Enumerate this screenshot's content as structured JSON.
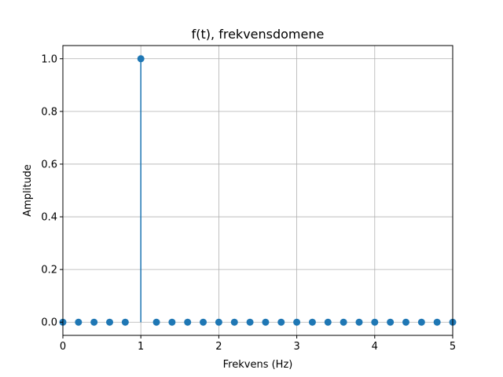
{
  "chart_data": {
    "type": "scatter",
    "title": "f(t), frekvensdomene",
    "xlabel": "Frekvens (Hz)",
    "ylabel": "Amplitude",
    "xlim": [
      0,
      5
    ],
    "ylim": [
      -0.05,
      1.05
    ],
    "grid": true,
    "x_ticks": [
      0,
      1,
      2,
      3,
      4,
      5
    ],
    "x_tick_labels": [
      "0",
      "1",
      "2",
      "3",
      "4",
      "5"
    ],
    "y_ticks": [
      0.0,
      0.2,
      0.4,
      0.6,
      0.8,
      1.0
    ],
    "y_tick_labels": [
      "0.0",
      "0.2",
      "0.4",
      "0.6",
      "0.8",
      "1.0"
    ],
    "marker_color": "#1f77b4",
    "series": [
      {
        "x": [
          0,
          0.2,
          0.4,
          0.6,
          0.8,
          1.0,
          1.2,
          1.4,
          1.6,
          1.8,
          2.0,
          2.2,
          2.4,
          2.6,
          2.8,
          3.0,
          3.2,
          3.4,
          3.6,
          3.8,
          4.0,
          4.2,
          4.4,
          4.6,
          4.8,
          5.0
        ],
        "y": [
          0,
          0,
          0,
          0,
          0,
          1.0,
          0,
          0,
          0,
          0,
          0,
          0,
          0,
          0,
          0,
          0,
          0,
          0,
          0,
          0,
          0,
          0,
          0,
          0,
          0,
          0
        ]
      }
    ]
  }
}
